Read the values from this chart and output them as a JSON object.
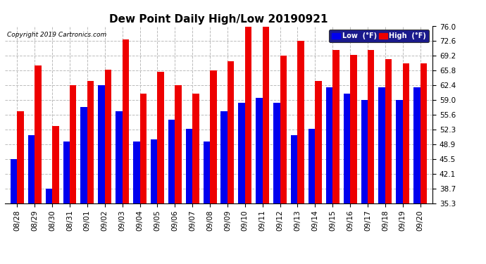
{
  "title": "Dew Point Daily High/Low 20190921",
  "copyright": "Copyright 2019 Cartronics.com",
  "dates": [
    "08/28",
    "08/29",
    "08/30",
    "08/31",
    "09/01",
    "09/02",
    "09/03",
    "09/04",
    "09/05",
    "09/06",
    "09/07",
    "09/08",
    "09/09",
    "09/10",
    "09/11",
    "09/12",
    "09/13",
    "09/14",
    "09/15",
    "09/16",
    "09/17",
    "09/18",
    "09/19",
    "09/20"
  ],
  "low": [
    45.5,
    51.0,
    38.7,
    49.5,
    57.5,
    62.5,
    56.5,
    49.5,
    50.0,
    54.5,
    52.5,
    49.5,
    56.5,
    58.5,
    59.5,
    58.5,
    51.0,
    52.5,
    62.0,
    60.5,
    59.0,
    62.0,
    59.0,
    62.0
  ],
  "high": [
    56.5,
    67.0,
    53.0,
    62.4,
    63.5,
    66.0,
    73.0,
    60.5,
    65.5,
    62.5,
    60.5,
    65.8,
    68.0,
    76.0,
    77.0,
    69.2,
    72.6,
    63.5,
    70.5,
    69.5,
    70.5,
    68.5,
    67.5,
    67.5
  ],
  "ymin": 35.3,
  "ylim": [
    35.3,
    76.0
  ],
  "yticks": [
    35.3,
    38.7,
    42.1,
    45.5,
    48.9,
    52.3,
    55.6,
    59.0,
    62.4,
    65.8,
    69.2,
    72.6,
    76.0
  ],
  "bar_width": 0.38,
  "low_color": "#0000ee",
  "high_color": "#ee0000",
  "bg_color": "#ffffff",
  "grid_color": "#bbbbbb",
  "title_fontsize": 11,
  "tick_fontsize": 7.5
}
